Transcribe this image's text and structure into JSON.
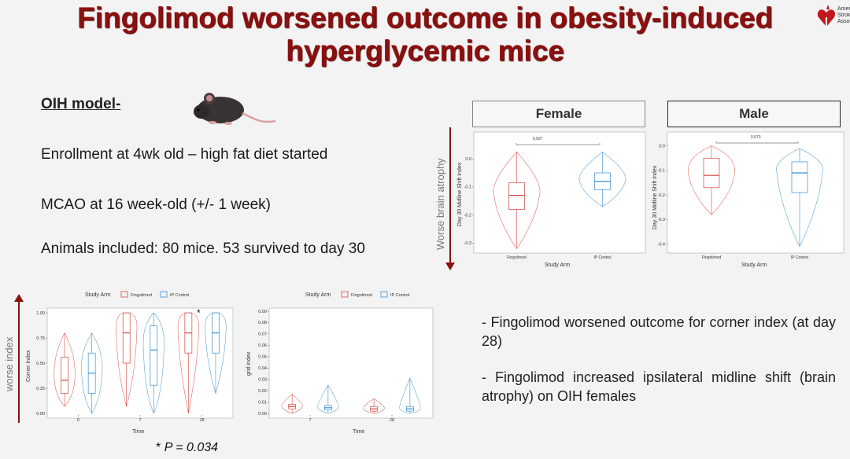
{
  "slide": {
    "title_line1": "Fingolimod worsened outcome in obesity-induced",
    "title_line2": "hyperglycemic mice",
    "logo_text": "Amer Strok Assoc",
    "logo_icon": "heart-torch-icon",
    "accent_color": "#8b1010"
  },
  "left": {
    "model_label": "OIH model-",
    "mouse_icon": "mouse-icon",
    "bullets": [
      "Enrollment at 4wk old – high fat diet started",
      "MCAO at 16 week-old (+/- 1 week)",
      "Animals included: 80 mice. 53 survived to day 30"
    ]
  },
  "midline": {
    "side_label": "Worse brain atrophy",
    "ylabel": "Day 30 Midline Shift Index",
    "xlabel": "Study Arm",
    "female": {
      "header": "Female",
      "pvalue": "0.027",
      "categories": [
        "Fingolimod",
        "IP Control"
      ],
      "yticks": [
        "0.0",
        "-0.1",
        "-0.2",
        "-0.3"
      ]
    },
    "male": {
      "header": "Male",
      "pvalue": "0.573",
      "categories": [
        "Fingolimod",
        "IP Control"
      ],
      "yticks": [
        "0.0",
        "-0.1",
        "-0.2",
        "-0.3",
        "-0.4"
      ]
    }
  },
  "corner": {
    "side_label": "worse index",
    "legend_title": "Study Arm",
    "legend": [
      "Fingolimod",
      "IP Control"
    ],
    "ylabel": "Corner Index",
    "xlabel": "Time",
    "yticks": [
      "0.00",
      "0.25",
      "0.50",
      "0.75",
      "1.00"
    ],
    "xticks": [
      "0",
      "7",
      "28"
    ],
    "star": "*",
    "pnote_star": "*",
    "pnote": "P = 0.034"
  },
  "grid": {
    "legend_title": "Study Arm",
    "legend": [
      "Fingolimod",
      "IP Control"
    ],
    "ylabel": "grid index",
    "xlabel": "Time",
    "yticks": [
      "0.00",
      "0.01",
      "0.02",
      "0.03",
      "0.04",
      "0.05",
      "0.06",
      "0.07",
      "0.08",
      "0.09"
    ],
    "xticks": [
      "7",
      "28"
    ]
  },
  "right_text": {
    "point1": "- Fingolimod worsened outcome for corner index (at day 28)",
    "point2": "- Fingolimod increased ipsilateral midline shift (brain atrophy) on OIH females"
  },
  "colors": {
    "fingolimod": "#d9453f",
    "control": "#3a8fd0",
    "arrow": "#8b1010"
  },
  "chart_data": [
    {
      "type": "box",
      "title": "Female",
      "xlabel": "Study Arm",
      "ylabel": "Day 30 Midline Shift Index",
      "categories": [
        "Fingolimod",
        "IP Control"
      ],
      "ylim": [
        -0.33,
        0.09
      ],
      "series": [
        {
          "name": "Fingolimod",
          "min": -0.32,
          "q1": -0.18,
          "median": -0.13,
          "q3": -0.085,
          "max": 0.025
        },
        {
          "name": "IP Control",
          "min": -0.17,
          "q1": -0.11,
          "median": -0.08,
          "q3": -0.05,
          "max": 0.025
        }
      ],
      "annotation": "0.027"
    },
    {
      "type": "box",
      "title": "Male",
      "xlabel": "Study Arm",
      "ylabel": "Day 30 Midline Shift Index",
      "categories": [
        "Fingolimod",
        "IP Control"
      ],
      "ylim": [
        -0.43,
        0.05
      ],
      "series": [
        {
          "name": "Fingolimod",
          "min": -0.28,
          "q1": -0.17,
          "median": -0.12,
          "q3": -0.05,
          "max": 0.0
        },
        {
          "name": "IP Control",
          "min": -0.41,
          "q1": -0.19,
          "median": -0.11,
          "q3": -0.065,
          "max": -0.01
        }
      ],
      "annotation": "0.573"
    },
    {
      "type": "box",
      "title": "",
      "xlabel": "Time",
      "ylabel": "Corner Index",
      "legend_title": "Study Arm",
      "categories": [
        "0",
        "7",
        "28"
      ],
      "ylim": [
        0,
        1
      ],
      "series": [
        {
          "name": "Fingolimod",
          "values": [
            {
              "min": 0.07,
              "q1": 0.2,
              "median": 0.33,
              "q3": 0.56,
              "max": 0.8
            },
            {
              "min": 0.07,
              "q1": 0.5,
              "median": 0.8,
              "q3": 1.0,
              "max": 1.0
            },
            {
              "min": 0.0,
              "q1": 0.6,
              "median": 0.8,
              "q3": 1.0,
              "max": 1.0
            }
          ]
        },
        {
          "name": "IP Control",
          "values": [
            {
              "min": 0.0,
              "q1": 0.2,
              "median": 0.4,
              "q3": 0.6,
              "max": 0.8
            },
            {
              "min": 0.0,
              "q1": 0.28,
              "median": 0.63,
              "q3": 0.87,
              "max": 1.0
            },
            {
              "min": 0.2,
              "q1": 0.6,
              "median": 0.8,
              "q3": 1.0,
              "max": 1.0
            }
          ]
        }
      ],
      "annotation": "*"
    },
    {
      "type": "box",
      "title": "",
      "xlabel": "Time",
      "ylabel": "grid index",
      "legend_title": "Study Arm",
      "categories": [
        "7",
        "28"
      ],
      "ylim": [
        0,
        0.09
      ],
      "series": [
        {
          "name": "Fingolimod",
          "values": [
            {
              "min": 0.0,
              "q1": 0.004,
              "median": 0.006,
              "q3": 0.008,
              "max": 0.017
            },
            {
              "min": 0.0,
              "q1": 0.002,
              "median": 0.004,
              "q3": 0.006,
              "max": 0.013
            }
          ]
        },
        {
          "name": "IP Control",
          "values": [
            {
              "min": 0.0,
              "q1": 0.003,
              "median": 0.005,
              "q3": 0.007,
              "max": 0.025
            },
            {
              "min": 0.0,
              "q1": 0.002,
              "median": 0.004,
              "q3": 0.006,
              "max": 0.031
            }
          ]
        }
      ]
    }
  ]
}
